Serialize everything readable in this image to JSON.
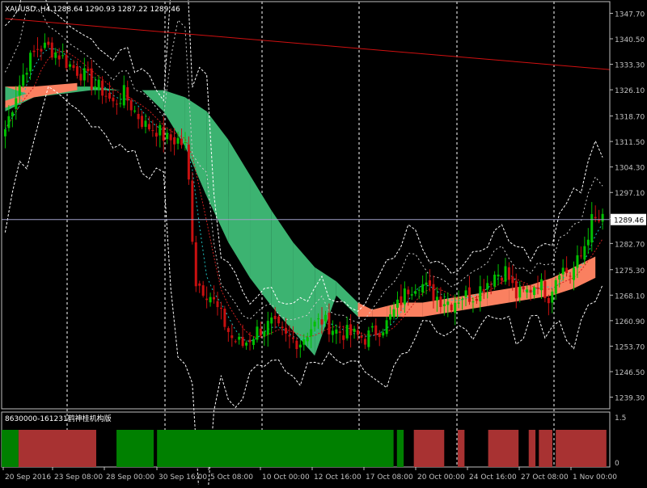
{
  "header": {
    "symbol": "XAUUSD.,H4",
    "ohlc": "1288.64 1290.93 1287.22 1289.46"
  },
  "price_axis": {
    "ticks": [
      "1347.70",
      "1340.50",
      "1333.30",
      "1326.10",
      "1318.70",
      "1311.50",
      "1304.30",
      "1297.10",
      "1289.70",
      "1282.70",
      "1275.30",
      "1268.10",
      "1260.90",
      "1253.70",
      "1246.50",
      "1239.30"
    ],
    "current_price": "1289.46"
  },
  "time_axis": {
    "labels": [
      "20 Sep 2016",
      "23 Sep 08:00",
      "28 Sep 00:00",
      "30 Sep 16:00",
      "5 Oct 08:00",
      "10 Oct 00:00",
      "12 Oct 16:00",
      "17 Oct 08:00",
      "20 Oct 00:00",
      "24 Oct 16:00",
      "27 Oct 08:00",
      "1 Nov 00:00"
    ]
  },
  "indicator": {
    "label": "8630000-161231鹤神桂机构版",
    "scale_max": "1.5",
    "scale_min": "0",
    "segments": [
      {
        "state": "green",
        "from": 0.0,
        "to": 0.05
      },
      {
        "state": "red",
        "from": 0.05,
        "to": 0.28
      },
      {
        "state": "black",
        "from": 0.28,
        "to": 0.34
      },
      {
        "state": "green",
        "from": 0.34,
        "to": 0.45
      },
      {
        "state": "black",
        "from": 0.45,
        "to": 0.46
      },
      {
        "state": "green",
        "from": 0.46,
        "to": 1.16
      },
      {
        "state": "black",
        "from": 1.16,
        "to": 1.17
      },
      {
        "state": "green",
        "from": 1.17,
        "to": 1.19
      },
      {
        "state": "black",
        "from": 1.19,
        "to": 1.22
      },
      {
        "state": "red",
        "from": 1.22,
        "to": 1.31
      },
      {
        "state": "black",
        "from": 1.31,
        "to": 1.35
      },
      {
        "state": "red",
        "from": 1.35,
        "to": 1.37
      },
      {
        "state": "black",
        "from": 1.37,
        "to": 1.44
      },
      {
        "state": "red",
        "from": 1.44,
        "to": 1.53
      },
      {
        "state": "black",
        "from": 1.53,
        "to": 1.56
      },
      {
        "state": "red",
        "from": 1.56,
        "to": 1.58
      },
      {
        "state": "black",
        "from": 1.58,
        "to": 1.59
      },
      {
        "state": "red",
        "from": 1.59,
        "to": 1.63
      },
      {
        "state": "black",
        "from": 1.63,
        "to": 1.64
      },
      {
        "state": "red",
        "from": 1.64,
        "to": 1.79
      }
    ]
  },
  "colors": {
    "background": "#000000",
    "grid": "#ffffff",
    "axis": "#c0c0c0",
    "bull": "#00c000",
    "bear": "#c81010",
    "cloud_green": "#3cb371",
    "cloud_salmon": "#fa8060",
    "trendline": "#d01010",
    "ind_green": "#008000",
    "ind_red": "#a83232"
  },
  "chart_data": {
    "type": "candlestick",
    "symbol": "XAUUSD.",
    "timeframe": "H4",
    "ylim": [
      1236,
      1351
    ],
    "anchors": [
      [
        0,
        1315
      ],
      [
        3,
        1325
      ],
      [
        6,
        1333
      ],
      [
        9,
        1338
      ],
      [
        12,
        1338
      ],
      [
        15,
        1336
      ],
      [
        18,
        1333
      ],
      [
        21,
        1331
      ],
      [
        24,
        1328
      ],
      [
        27,
        1326
      ],
      [
        30,
        1322
      ],
      [
        33,
        1325
      ],
      [
        36,
        1320
      ],
      [
        39,
        1316
      ],
      [
        42,
        1315
      ],
      [
        45,
        1312
      ],
      [
        48,
        1312
      ],
      [
        50,
        1310
      ],
      [
        51,
        1300
      ],
      [
        52,
        1285
      ],
      [
        53,
        1272
      ],
      [
        55,
        1270
      ],
      [
        57,
        1268
      ],
      [
        60,
        1262
      ],
      [
        63,
        1256
      ],
      [
        66,
        1254
      ],
      [
        70,
        1258
      ],
      [
        74,
        1260
      ],
      [
        78,
        1256
      ],
      [
        82,
        1255
      ],
      [
        85,
        1259
      ],
      [
        88,
        1261
      ],
      [
        92,
        1258
      ],
      [
        96,
        1257
      ],
      [
        100,
        1256
      ],
      [
        103,
        1258
      ],
      [
        106,
        1260
      ],
      [
        109,
        1265
      ],
      [
        112,
        1270
      ],
      [
        115,
        1272
      ],
      [
        118,
        1269
      ],
      [
        121,
        1267
      ],
      [
        124,
        1266
      ],
      [
        127,
        1268
      ],
      [
        130,
        1268
      ],
      [
        133,
        1271
      ],
      [
        136,
        1274
      ],
      [
        139,
        1275
      ],
      [
        142,
        1268
      ],
      [
        145,
        1269
      ],
      [
        148,
        1272
      ],
      [
        151,
        1268
      ],
      [
        154,
        1276
      ],
      [
        157,
        1274
      ],
      [
        160,
        1279
      ],
      [
        163,
        1289
      ],
      [
        166,
        1289
      ]
    ],
    "trendline": [
      [
        0,
        1346.2
      ],
      [
        166,
        1331.8
      ]
    ],
    "cloud": [
      [
        0,
        1322,
        1320
      ],
      [
        8,
        1327,
        1324
      ],
      [
        16,
        1327,
        1325
      ],
      [
        24,
        1327,
        1326
      ],
      [
        32,
        1326,
        1326
      ],
      [
        38,
        1326,
        1326
      ],
      [
        44,
        1326,
        1320
      ],
      [
        50,
        1324,
        1310
      ],
      [
        56,
        1320,
        1296
      ],
      [
        62,
        1312,
        1283
      ],
      [
        68,
        1302,
        1273
      ],
      [
        74,
        1292,
        1265
      ],
      [
        80,
        1283,
        1258
      ],
      [
        86,
        1276,
        1251
      ],
      [
        92,
        1272,
        1268
      ],
      [
        98,
        1266,
        1262
      ],
      [
        102,
        1264,
        1262
      ],
      [
        106,
        1265,
        1262
      ],
      [
        110,
        1266,
        1262
      ],
      [
        116,
        1266,
        1262
      ],
      [
        122,
        1267,
        1263
      ],
      [
        128,
        1268,
        1264
      ],
      [
        134,
        1269,
        1265
      ],
      [
        140,
        1270,
        1266
      ],
      [
        146,
        1271,
        1267
      ],
      [
        152,
        1273,
        1268
      ],
      [
        158,
        1276,
        1270
      ],
      [
        164,
        1279,
        1273
      ]
    ]
  }
}
